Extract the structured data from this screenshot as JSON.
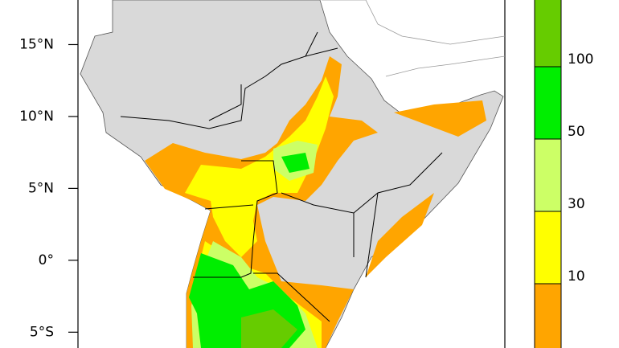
{
  "map": {
    "lat_range": [
      -6.1,
      18.1
    ],
    "lat_ticks": [
      {
        "value": 15,
        "label": "15°N"
      },
      {
        "value": 10,
        "label": "10°N"
      },
      {
        "value": 5,
        "label": "5°N"
      },
      {
        "value": 0,
        "label": "0°"
      },
      {
        "value": -5,
        "label": "5°S"
      }
    ],
    "colorbar": {
      "colors": [
        "#ffa500",
        "#ffff00",
        "#ccff66",
        "#00ee00",
        "#66cc00"
      ],
      "ticks": [
        10,
        30,
        50,
        100
      ]
    }
  }
}
